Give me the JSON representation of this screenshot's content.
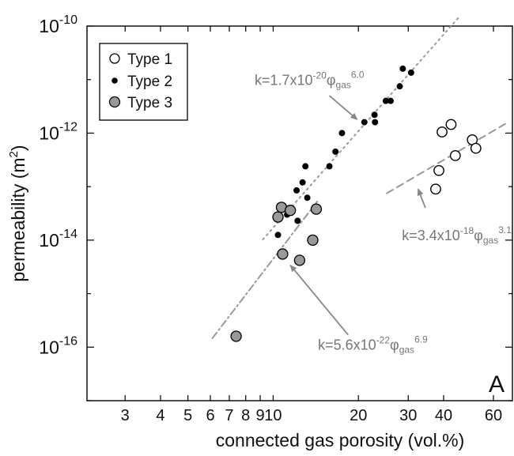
{
  "chart_data": {
    "type": "scatter",
    "xlabel": "connected gas porosity (vol.%)",
    "ylabel": "permeability (m",
    "ylabel_sup": "2",
    "ylabel_tail": ")",
    "panel_label": "A",
    "x_scale": "log",
    "y_scale": "log",
    "xlim": [
      2.2,
      70
    ],
    "ylim": [
      1e-17,
      1e-10
    ],
    "grid": false,
    "legend_position": "top-left",
    "x_ticks": [
      {
        "value": 3,
        "label": "3"
      },
      {
        "value": 4,
        "label": "4"
      },
      {
        "value": 5,
        "label": "5"
      },
      {
        "value": 6,
        "label": "6"
      },
      {
        "value": 7,
        "label": "7"
      },
      {
        "value": 8,
        "label": "8"
      },
      {
        "value": 9,
        "label": "9"
      },
      {
        "value": 10,
        "label": "10"
      },
      {
        "value": 20,
        "label": "20"
      },
      {
        "value": 30,
        "label": "30"
      },
      {
        "value": 40,
        "label": "40"
      },
      {
        "value": 60,
        "label": "60"
      }
    ],
    "y_ticks": [
      {
        "value": 1e-10,
        "base": "10",
        "exp": "-10"
      },
      {
        "value": 1e-12,
        "base": "10",
        "exp": "-12"
      },
      {
        "value": 1e-14,
        "base": "10",
        "exp": "-14"
      },
      {
        "value": 1e-16,
        "base": "10",
        "exp": "-16"
      }
    ],
    "series": [
      {
        "name": "Type 1",
        "marker": "open-circle",
        "color": "#000000",
        "fill": "#ffffff",
        "points": [
          [
            37.5,
            9e-14
          ],
          [
            38.5,
            2e-13
          ],
          [
            39.5,
            1.05e-12
          ],
          [
            42.5,
            1.45e-12
          ],
          [
            44,
            3.8e-13
          ],
          [
            50.5,
            7.5e-13
          ],
          [
            52,
            5.2e-13
          ]
        ]
      },
      {
        "name": "Type 2",
        "marker": "filled-circle",
        "color": "#000000",
        "fill": "#000000",
        "points": [
          [
            7.4,
            1.6e-16
          ],
          [
            10.4,
            1.25e-14
          ],
          [
            10.8,
            4.2e-14
          ],
          [
            11.2,
            3e-14
          ],
          [
            12.1,
            8.5e-14
          ],
          [
            12.2,
            2.3e-14
          ],
          [
            12.7,
            1.2e-13
          ],
          [
            13.0,
            2.4e-13
          ],
          [
            13.2,
            6.2e-14
          ],
          [
            15.8,
            2.4e-13
          ],
          [
            16.6,
            4.5e-13
          ],
          [
            17.5,
            1e-12
          ],
          [
            21.0,
            1.6e-12
          ],
          [
            22.8,
            2.2e-12
          ],
          [
            22.9,
            1.6e-12
          ],
          [
            25.0,
            4e-12
          ],
          [
            26.0,
            4e-12
          ],
          [
            28.0,
            7.5e-12
          ],
          [
            28.7,
            1.6e-11
          ],
          [
            30.7,
            1.35e-11
          ]
        ]
      },
      {
        "name": "Type 3",
        "marker": "gray-circle",
        "color": "#000000",
        "fill": "#999999",
        "points": [
          [
            10.4,
            2.7e-14
          ],
          [
            10.7,
            4.1e-14
          ],
          [
            10.8,
            5.5e-15
          ],
          [
            11.5,
            3.6e-14
          ],
          [
            12.4,
            4.2e-15
          ],
          [
            13.8,
            1e-14
          ],
          [
            14.2,
            3.8e-14
          ],
          [
            7.4,
            1.6e-16
          ]
        ]
      }
    ],
    "fits": [
      {
        "style": "dotted",
        "color": "#999999",
        "x_range": [
          9.2,
          45
        ],
        "coef": 1.7e-20,
        "exponent": 6.0,
        "label_prefix": "k=1.7x10",
        "label_exp": "-20",
        "label_sym": "φ",
        "label_sub": "gas",
        "label_pow": "6.0",
        "label_at": [
          8.6,
          8e-12
        ],
        "arrow_from": [
          15.8,
          5e-12
        ],
        "arrow_to": [
          19.8,
          1.8e-12
        ]
      },
      {
        "style": "dashdot",
        "color": "#999999",
        "x_range": [
          6.1,
          14.4
        ],
        "coef": 5.6e-22,
        "exponent": 6.9,
        "label_prefix": "k=5.6x10",
        "label_exp": "-22",
        "label_sym": "φ",
        "label_sub": "gas",
        "label_pow": "6.9",
        "label_at": [
          14.4,
          9e-17
        ],
        "arrow_from": [
          18.4,
          1.7e-16
        ],
        "arrow_to": [
          11.5,
          3.4e-15
        ]
      },
      {
        "style": "dashed",
        "color": "#999999",
        "x_range": [
          25.2,
          66
        ],
        "coef": 3.4e-18,
        "exponent": 3.1,
        "label_prefix": "k=3.4x10",
        "label_exp": "-18",
        "label_sym": "φ",
        "label_sub": "gas",
        "label_pow": "3.1",
        "label_at": [
          28.5,
          1e-14
        ],
        "arrow_from": [
          34.5,
          4e-14
        ],
        "arrow_to": [
          32.5,
          9e-14
        ]
      }
    ]
  }
}
